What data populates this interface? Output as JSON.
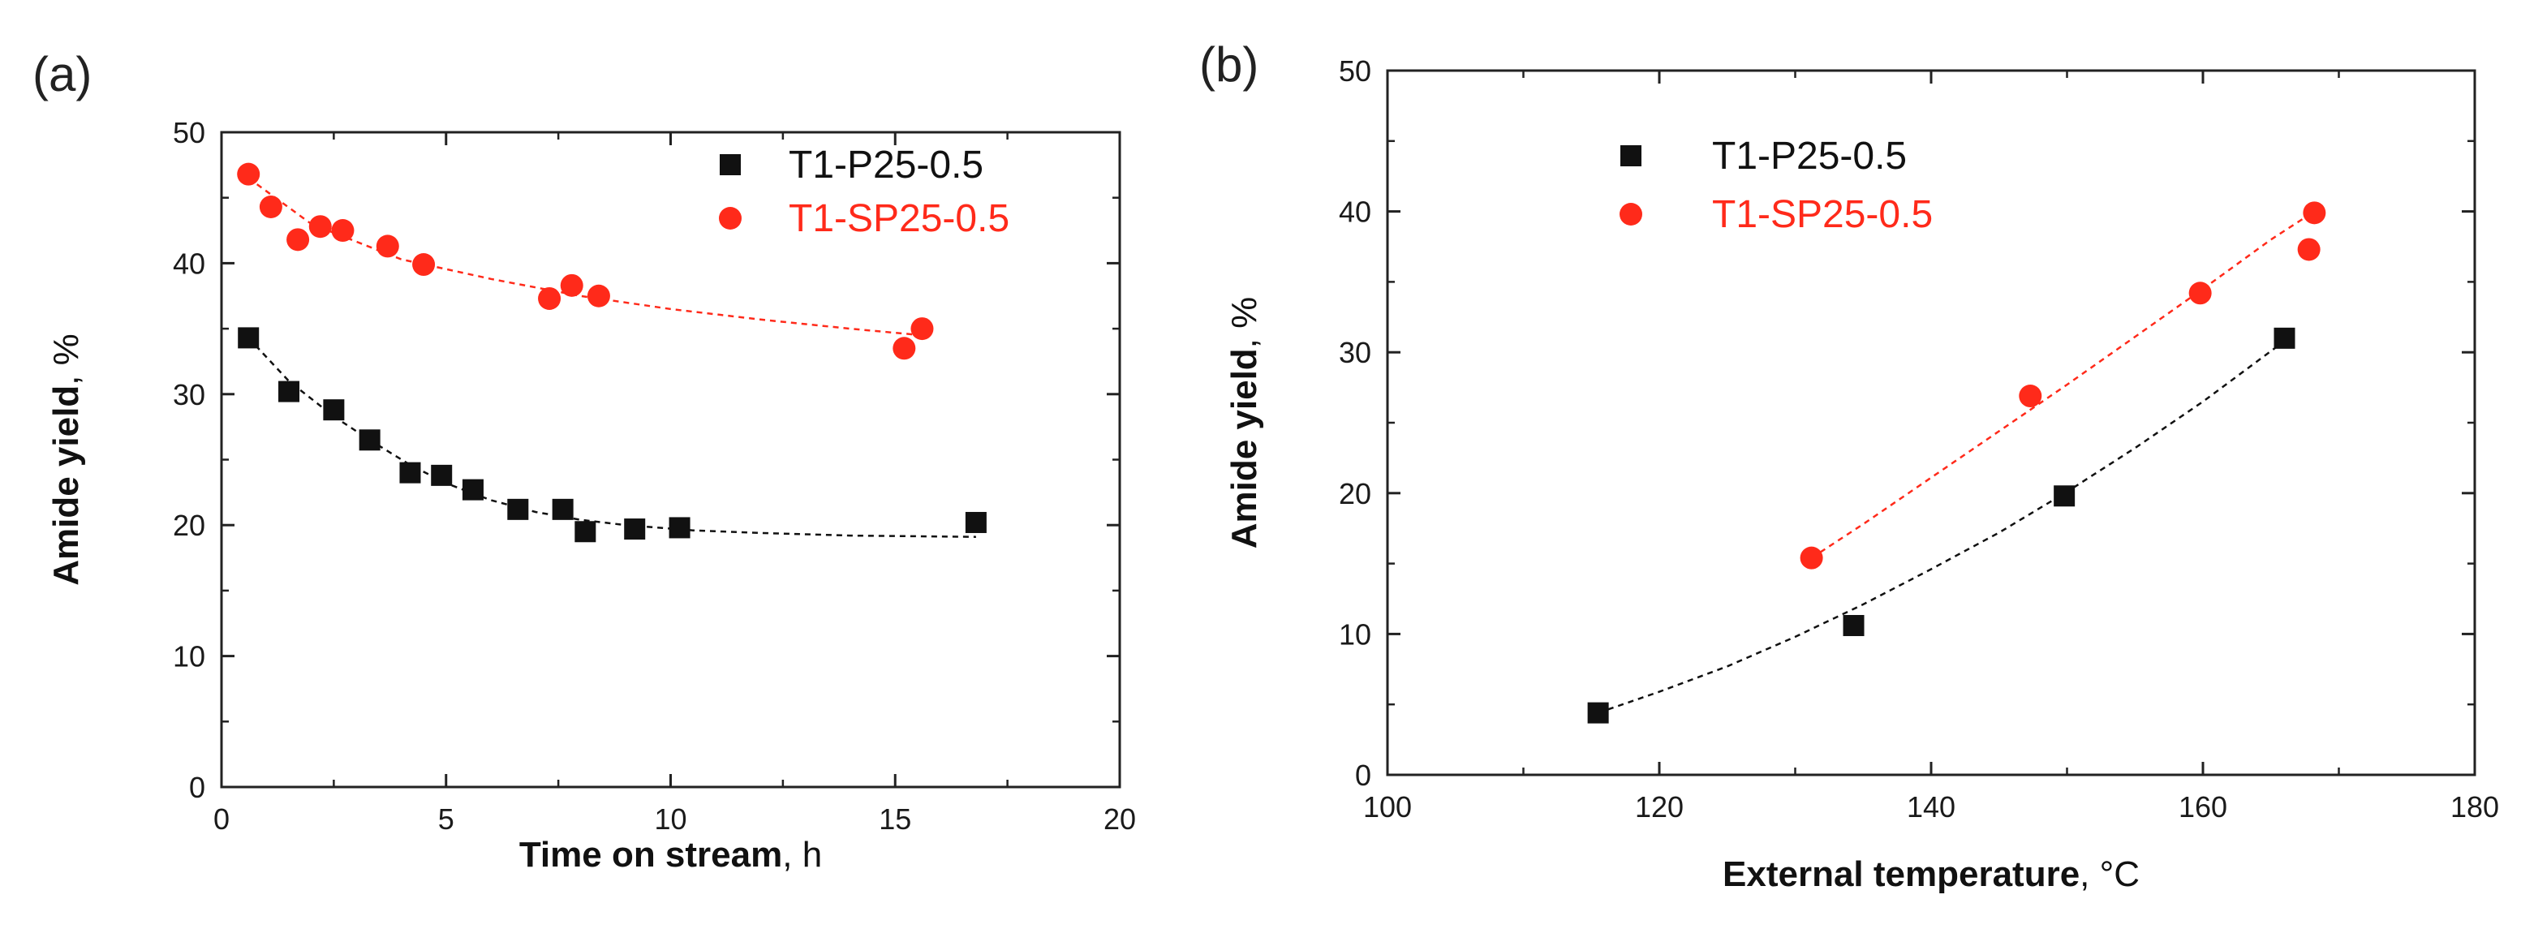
{
  "chart_data": [
    {
      "panel_label": "(a)",
      "type": "scatter",
      "xlabel": {
        "bold": "Time on stream",
        "rest": ", h"
      },
      "ylabel": {
        "bold": "Amide yield",
        "rest": ", %"
      },
      "xlim": [
        0,
        20
      ],
      "ylim": [
        0,
        50
      ],
      "xticks": [
        0,
        5,
        10,
        15,
        20
      ],
      "yticks": [
        0,
        10,
        20,
        30,
        40,
        50
      ],
      "grid": false,
      "legend_position": "top-right",
      "series": [
        {
          "name": "T1-P25-0.5",
          "marker": "square",
          "color": "#111111",
          "x": [
            0.6,
            1.5,
            2.5,
            3.3,
            4.2,
            4.9,
            5.6,
            6.6,
            7.6,
            8.1,
            9.2,
            10.2,
            16.8
          ],
          "y": [
            34.3,
            30.2,
            28.8,
            26.5,
            24.0,
            23.8,
            22.7,
            21.2,
            21.2,
            19.5,
            19.7,
            19.8,
            20.2
          ],
          "trend_x": [
            0.6,
            1.5,
            2.5,
            3.3,
            4.2,
            5.0,
            6.0,
            7.0,
            8.0,
            9.0,
            10.5,
            12.0,
            14.0,
            16.8
          ],
          "trend_y": [
            34.3,
            31.0,
            28.3,
            26.5,
            24.6,
            23.2,
            21.9,
            21.0,
            20.4,
            20.0,
            19.6,
            19.4,
            19.2,
            19.1
          ]
        },
        {
          "name": "T1-SP25-0.5",
          "marker": "circle",
          "color": "#ff2a1a",
          "x": [
            0.6,
            1.1,
            1.7,
            2.2,
            2.7,
            3.7,
            4.5,
            7.3,
            7.8,
            8.4,
            15.2,
            15.6
          ],
          "y": [
            46.8,
            44.3,
            41.8,
            42.8,
            42.5,
            41.3,
            39.9,
            37.3,
            38.3,
            37.5,
            33.5,
            35.0
          ],
          "trend_x": [
            0.6,
            2.0,
            4.0,
            6.0,
            8.0,
            10.0,
            12.0,
            14.0,
            15.6
          ],
          "trend_y": [
            46.5,
            43.0,
            40.3,
            38.8,
            37.5,
            36.5,
            35.7,
            35.0,
            34.5
          ]
        }
      ]
    },
    {
      "panel_label": "(b)",
      "type": "scatter",
      "xlabel": {
        "bold": "External temperature",
        "rest": ", °C"
      },
      "ylabel": {
        "bold": "Amide yield",
        "rest": ", %"
      },
      "xlim": [
        100,
        180
      ],
      "ylim": [
        0,
        50
      ],
      "xticks": [
        100,
        120,
        140,
        160,
        180
      ],
      "yticks": [
        0,
        10,
        20,
        30,
        40,
        50
      ],
      "grid": false,
      "legend_position": "top-left",
      "series": [
        {
          "name": "T1-P25-0.5",
          "marker": "square",
          "color": "#111111",
          "x": [
            115.5,
            134.3,
            149.8,
            166.0
          ],
          "y": [
            4.4,
            10.6,
            19.8,
            31.0
          ],
          "trend_x": [
            115.5,
            120.0,
            125.0,
            130.0,
            135.0,
            140.0,
            145.0,
            150.0,
            155.0,
            160.0,
            166.0
          ],
          "trend_y": [
            4.4,
            5.9,
            7.7,
            9.8,
            12.1,
            14.6,
            17.2,
            20.1,
            23.2,
            26.5,
            30.8
          ]
        },
        {
          "name": "T1-SP25-0.5",
          "marker": "circle",
          "color": "#ff2a1a",
          "x": [
            131.2,
            147.3,
            159.8,
            167.8,
            168.2
          ],
          "y": [
            15.4,
            26.9,
            34.2,
            37.3,
            39.9
          ],
          "trend_x": [
            131.2,
            135.0,
            140.0,
            145.0,
            150.0,
            155.0,
            160.0,
            165.0,
            168.2
          ],
          "trend_y": [
            15.4,
            17.8,
            21.1,
            24.4,
            27.7,
            31.1,
            34.5,
            38.0,
            40.0
          ]
        }
      ]
    }
  ]
}
